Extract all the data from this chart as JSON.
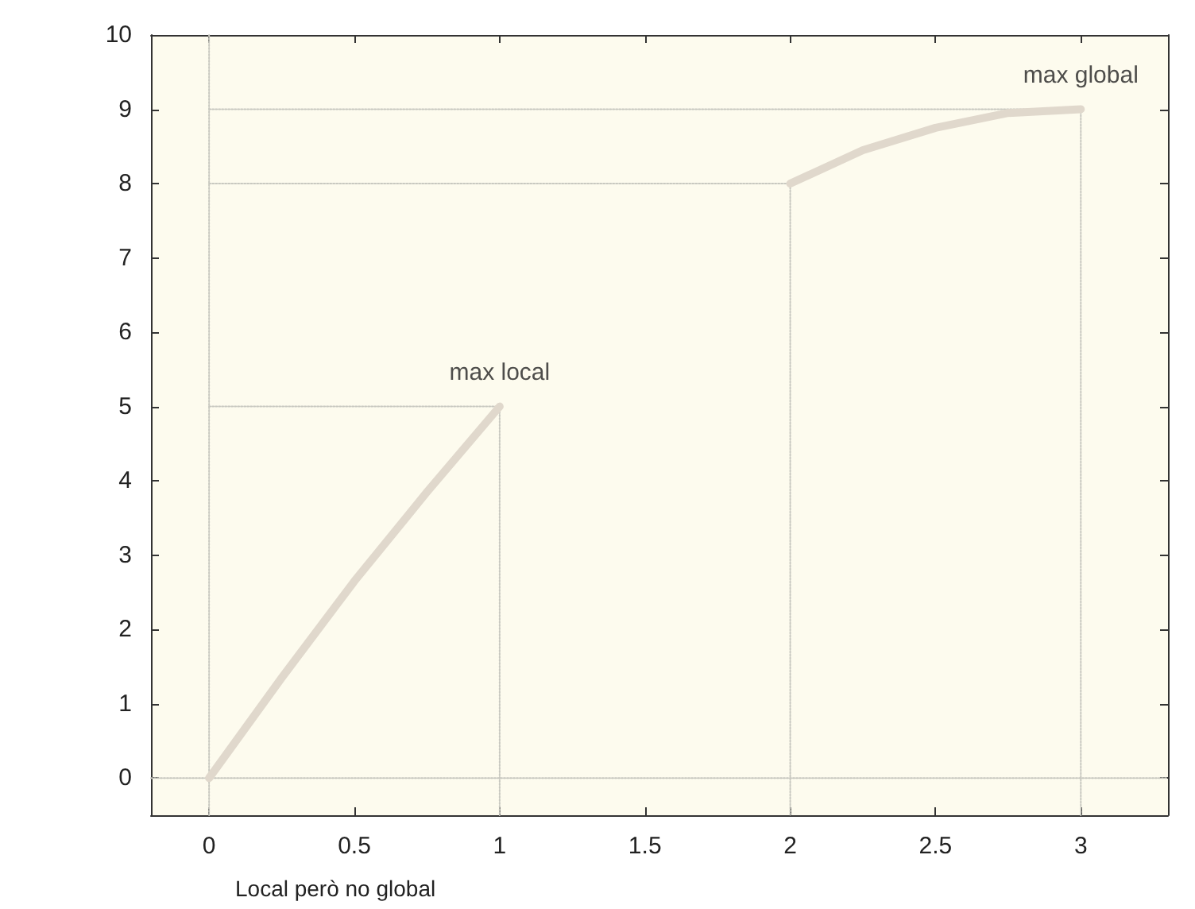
{
  "chart_data": {
    "type": "line",
    "xlim": [
      -0.2,
      3.3
    ],
    "ylim": [
      -0.5,
      10
    ],
    "xticks": [
      0,
      0.5,
      1,
      1.5,
      2,
      2.5,
      3
    ],
    "yticks": [
      0,
      1,
      2,
      3,
      4,
      5,
      6,
      7,
      8,
      9,
      10
    ],
    "grid": false,
    "marker": "none",
    "series": [
      {
        "color": "#e0d8cc",
        "line_style": "solid",
        "x": [
          0,
          0.25,
          0.5,
          0.75,
          1
        ],
        "values": [
          0,
          1.35,
          2.65,
          3.85,
          5
        ]
      },
      {
        "color": "#e0d8cc",
        "line_style": "solid",
        "x": [
          2,
          2.25,
          2.5,
          2.75,
          3
        ],
        "values": [
          8,
          8.45,
          8.75,
          8.95,
          9
        ]
      },
      {
        "color": "#c8c8c0",
        "line_style": "dotted",
        "x": [
          0,
          1,
          1
        ],
        "values": [
          5,
          5,
          -0.5
        ]
      },
      {
        "color": "#c8c8c0",
        "line_style": "dotted",
        "x": [
          0,
          2,
          2
        ],
        "values": [
          8,
          8,
          -0.5
        ]
      },
      {
        "color": "#c8c8c0",
        "line_style": "dotted",
        "x": [
          0,
          3,
          3
        ],
        "values": [
          9,
          9,
          -0.5
        ]
      },
      {
        "color": "#c8c8c0",
        "line_style": "dotted",
        "x": [
          0,
          0
        ],
        "values": [
          -0.5,
          10
        ]
      },
      {
        "color": "#c8c8c0",
        "line_style": "dotted",
        "x": [
          -0.2,
          3.3
        ],
        "values": [
          0,
          0
        ]
      }
    ],
    "annotations": [
      {
        "text": "max local",
        "x": 1,
        "y": 5
      },
      {
        "text": "max global",
        "x": 3,
        "y": 9
      },
      "Local però no global"
    ]
  }
}
